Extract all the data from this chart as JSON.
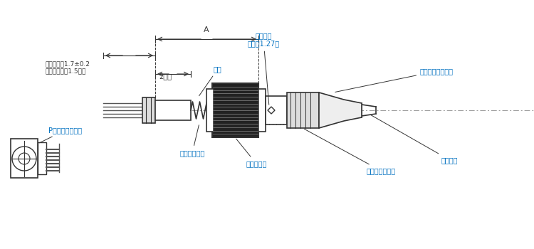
{
  "bg_color": "#ffffff",
  "line_color": "#333333",
  "dark_gray": "#555555",
  "mid_gray": "#888888",
  "light_gray": "#aaaaaa",
  "blue_label": "#0070c0",
  "label_color": "#333333",
  "fig_width": 7.5,
  "fig_height": 3.5,
  "labels": {
    "p_shell": "Pシェルユニット",
    "clamp": "クランプ金具",
    "plug_body": "プラグ本体",
    "spanner": "スパナ掛け位置",
    "cable": "ケーブル",
    "cord_bush": "コードブッシング",
    "boss": "ボス",
    "stop_screw": "止めビス",
    "stop_screw2": "（対辺1.27）",
    "dim_a": "A",
    "dim_2": "2以上",
    "solder": "はんだタイプ1.5程度",
    "crimp": "圧着タイプ1.7±0.2"
  }
}
